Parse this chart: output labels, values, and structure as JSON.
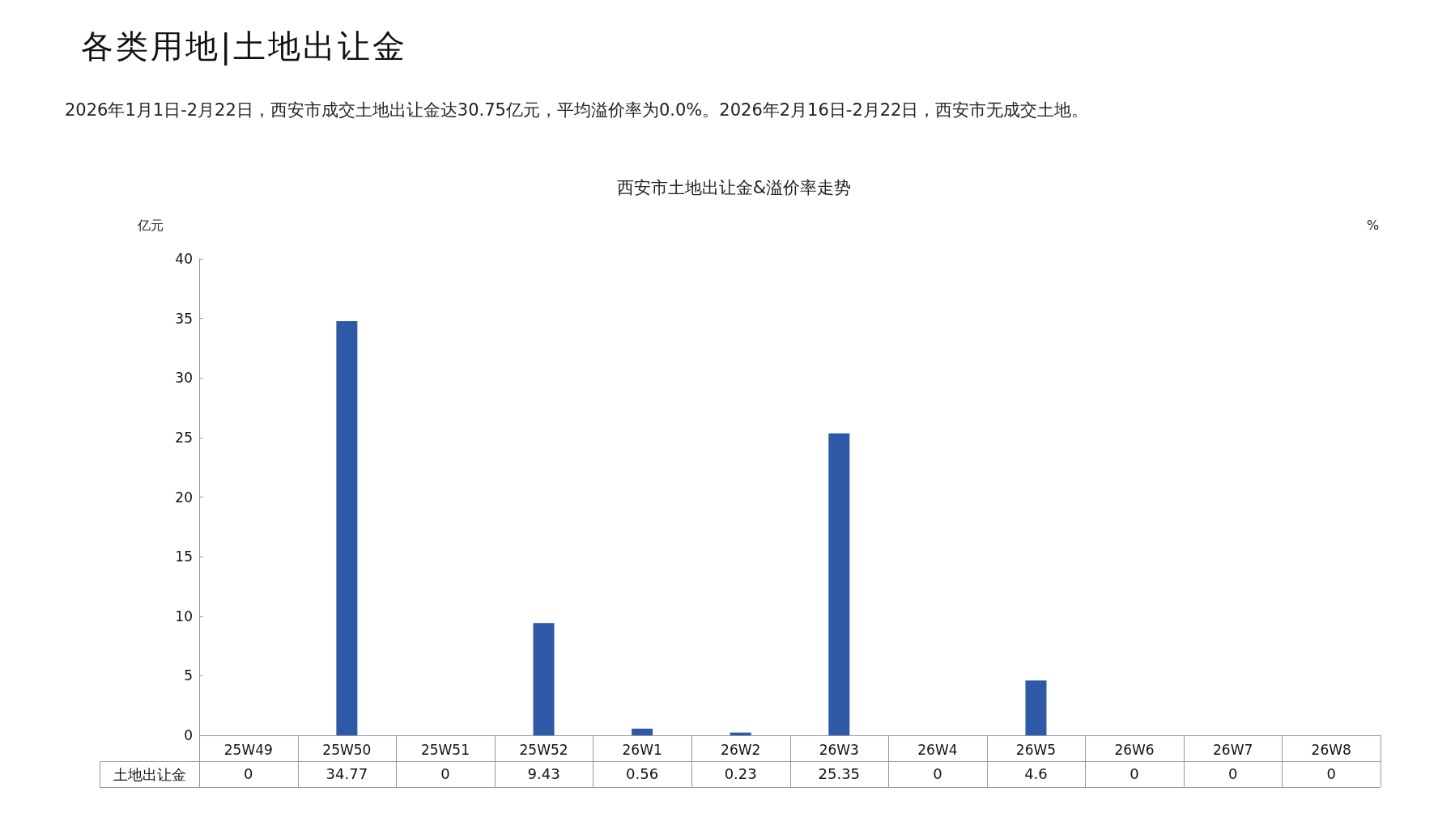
{
  "chart_data": {
    "type": "bar",
    "title": "各类用地|土地出让金",
    "subtitle": "2026年1月1日-2月22日，西安市成交土地出让金达30.75亿元，平均溢价率为0.0%。2026年2月16日-2月22日，西安市无成交土地。",
    "annotations": [
      "西安市土地出让金&溢价率走势"
    ],
    "ylabel": "亿元",
    "y2label": "%",
    "categories": [
      "25W49",
      "25W50",
      "25W51",
      "25W52",
      "26W1",
      "26W2",
      "26W3",
      "26W4",
      "26W5",
      "26W6",
      "26W7",
      "26W8"
    ],
    "series": [
      {
        "name": "土地出让金",
        "color": "#2e59a7",
        "values": [
          0,
          34.77,
          0,
          9.43,
          0.56,
          0.23,
          25.35,
          0,
          4.6,
          0,
          0,
          0
        ]
      }
    ],
    "ylim": [
      0,
      40
    ],
    "yticks": [
      0,
      5,
      10,
      15,
      20,
      25,
      30,
      35,
      40
    ],
    "grid": false,
    "legend": false,
    "data_labels": true
  }
}
